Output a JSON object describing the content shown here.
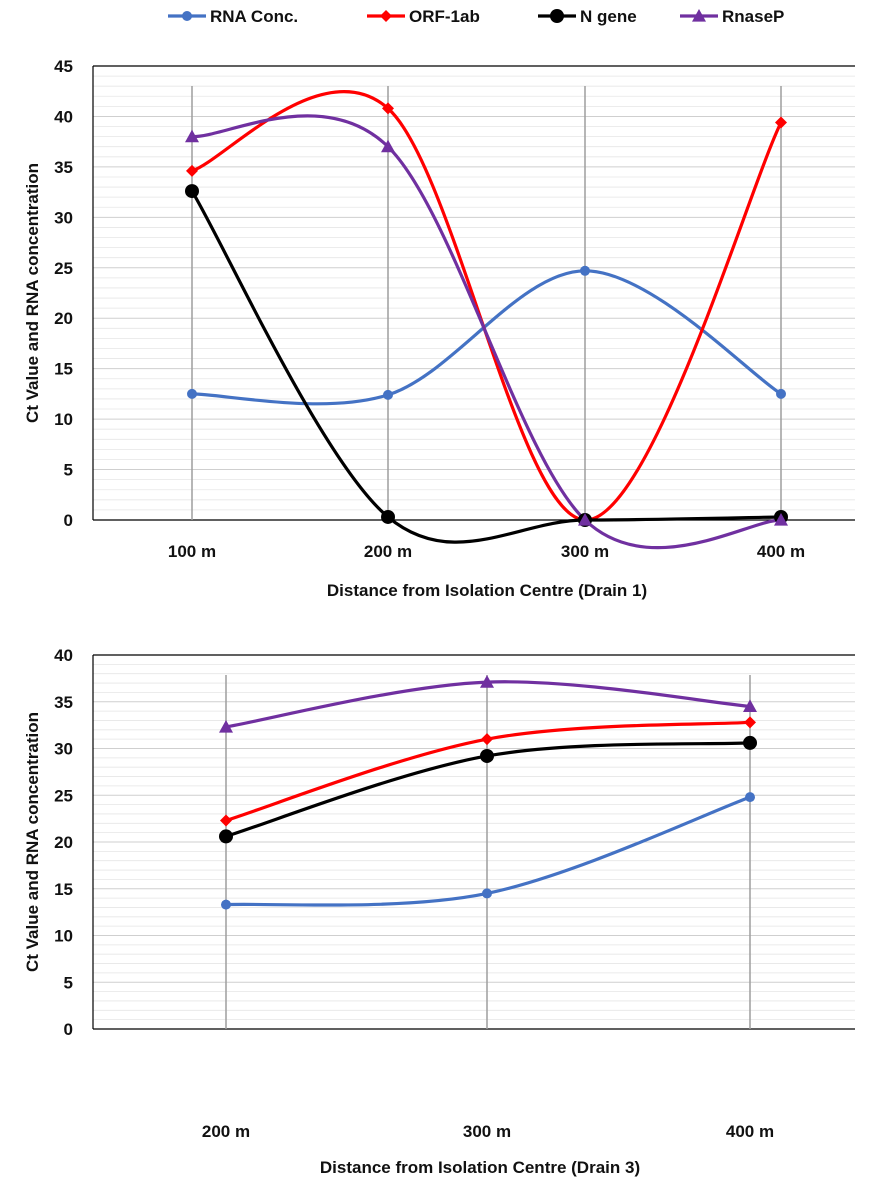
{
  "legend": {
    "items": [
      {
        "label": "RNA Conc.",
        "color": "#4472c4",
        "marker": "circle"
      },
      {
        "label": "ORF-1ab",
        "color": "#ff0000",
        "marker": "diamond"
      },
      {
        "label": "N gene",
        "color": "#000000",
        "marker": "circle"
      },
      {
        "label": "RnaseP",
        "color": "#7030a0",
        "marker": "triangle"
      }
    ]
  },
  "chart_data": [
    {
      "type": "line",
      "categories": [
        "100 m",
        "200 m",
        "300 m",
        "400 m"
      ],
      "xlabel": "Distance from Isolation Centre (Drain 1)",
      "ylabel": "Ct Value and RNA concentration",
      "ylim": [
        0,
        45
      ],
      "ytick_step": 5,
      "ytick_labels": [
        "0",
        "5",
        "10",
        "15",
        "20",
        "25",
        "30",
        "35",
        "40",
        "45"
      ],
      "minor_step": 1,
      "grid": true,
      "series": [
        {
          "name": "RNA Conc.",
          "values": [
            12.5,
            12.4,
            24.7,
            12.5
          ]
        },
        {
          "name": "ORF-1ab",
          "values": [
            34.6,
            40.8,
            0,
            39.4
          ]
        },
        {
          "name": "N gene",
          "values": [
            32.6,
            0.3,
            0,
            0.3
          ]
        },
        {
          "name": "RnaseP",
          "values": [
            38.0,
            37.0,
            0,
            0
          ]
        }
      ]
    },
    {
      "type": "line",
      "categories": [
        "200 m",
        "300 m",
        "400 m"
      ],
      "xlabel": "Distance from Isolation Centre (Drain 3)",
      "ylabel": "Ct Value and RNA concentration",
      "ylim": [
        0,
        40
      ],
      "ytick_step": 5,
      "ytick_labels": [
        "0",
        "5",
        "10",
        "15",
        "20",
        "25",
        "30",
        "35",
        "40"
      ],
      "minor_step": 1,
      "grid": true,
      "series": [
        {
          "name": "RNA Conc.",
          "values": [
            13.3,
            14.5,
            24.8
          ]
        },
        {
          "name": "ORF-1ab",
          "values": [
            22.3,
            31.0,
            32.8
          ]
        },
        {
          "name": "N gene",
          "values": [
            20.6,
            29.2,
            30.6
          ]
        },
        {
          "name": "RnaseP",
          "values": [
            32.3,
            37.1,
            34.5
          ]
        }
      ]
    }
  ]
}
